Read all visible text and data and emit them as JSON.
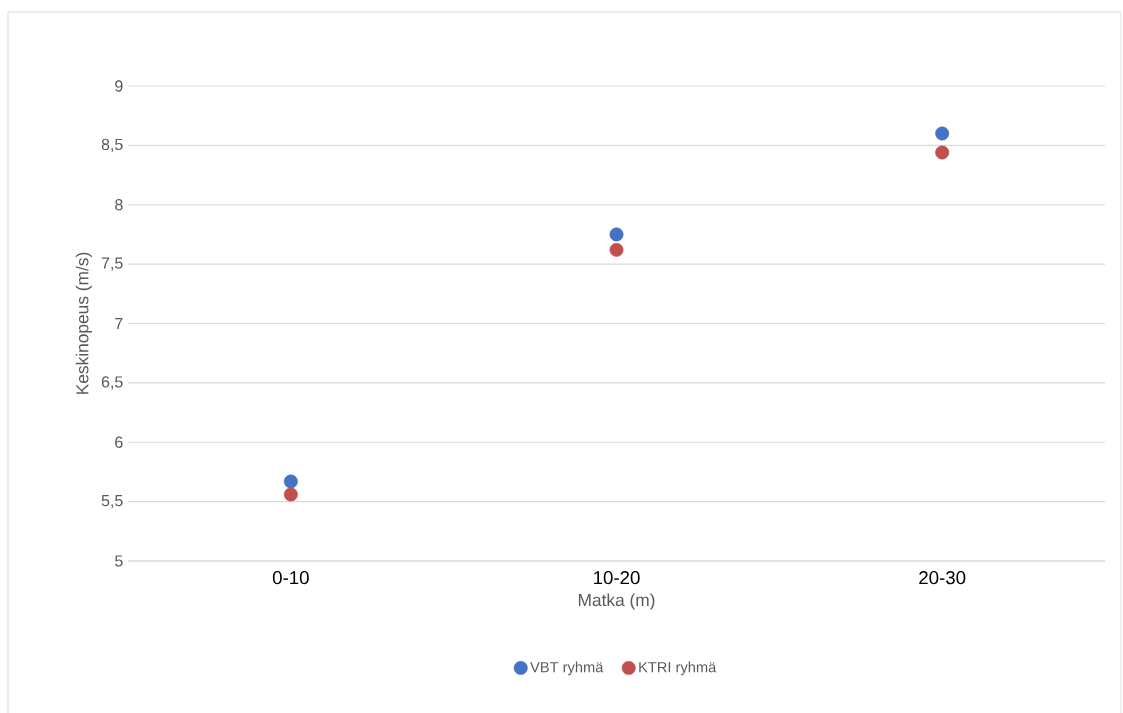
{
  "chart_data": {
    "type": "scatter",
    "xlabel": "Matka (m)",
    "ylabel": "Keskinopeus (m/s)",
    "categories": [
      "0-10",
      "10-20",
      "20-30"
    ],
    "series": [
      {
        "name": "VBT ryhmä",
        "color": "#4472c4",
        "values": [
          5.67,
          7.75,
          8.6
        ]
      },
      {
        "name": "KTRI ryhmä",
        "color": "#c0504d",
        "values": [
          5.56,
          7.62,
          8.44
        ]
      }
    ],
    "ylim": [
      5,
      9
    ],
    "yticks": [
      5,
      {
        "value": 5.5,
        "label": "5,5"
      },
      6,
      {
        "value": 6.5,
        "label": "6,5"
      },
      7,
      {
        "value": 7.5,
        "label": "7,5"
      },
      8,
      {
        "value": 8.5,
        "label": "8,5"
      },
      9
    ],
    "grid": "y",
    "legend": "bottom"
  }
}
